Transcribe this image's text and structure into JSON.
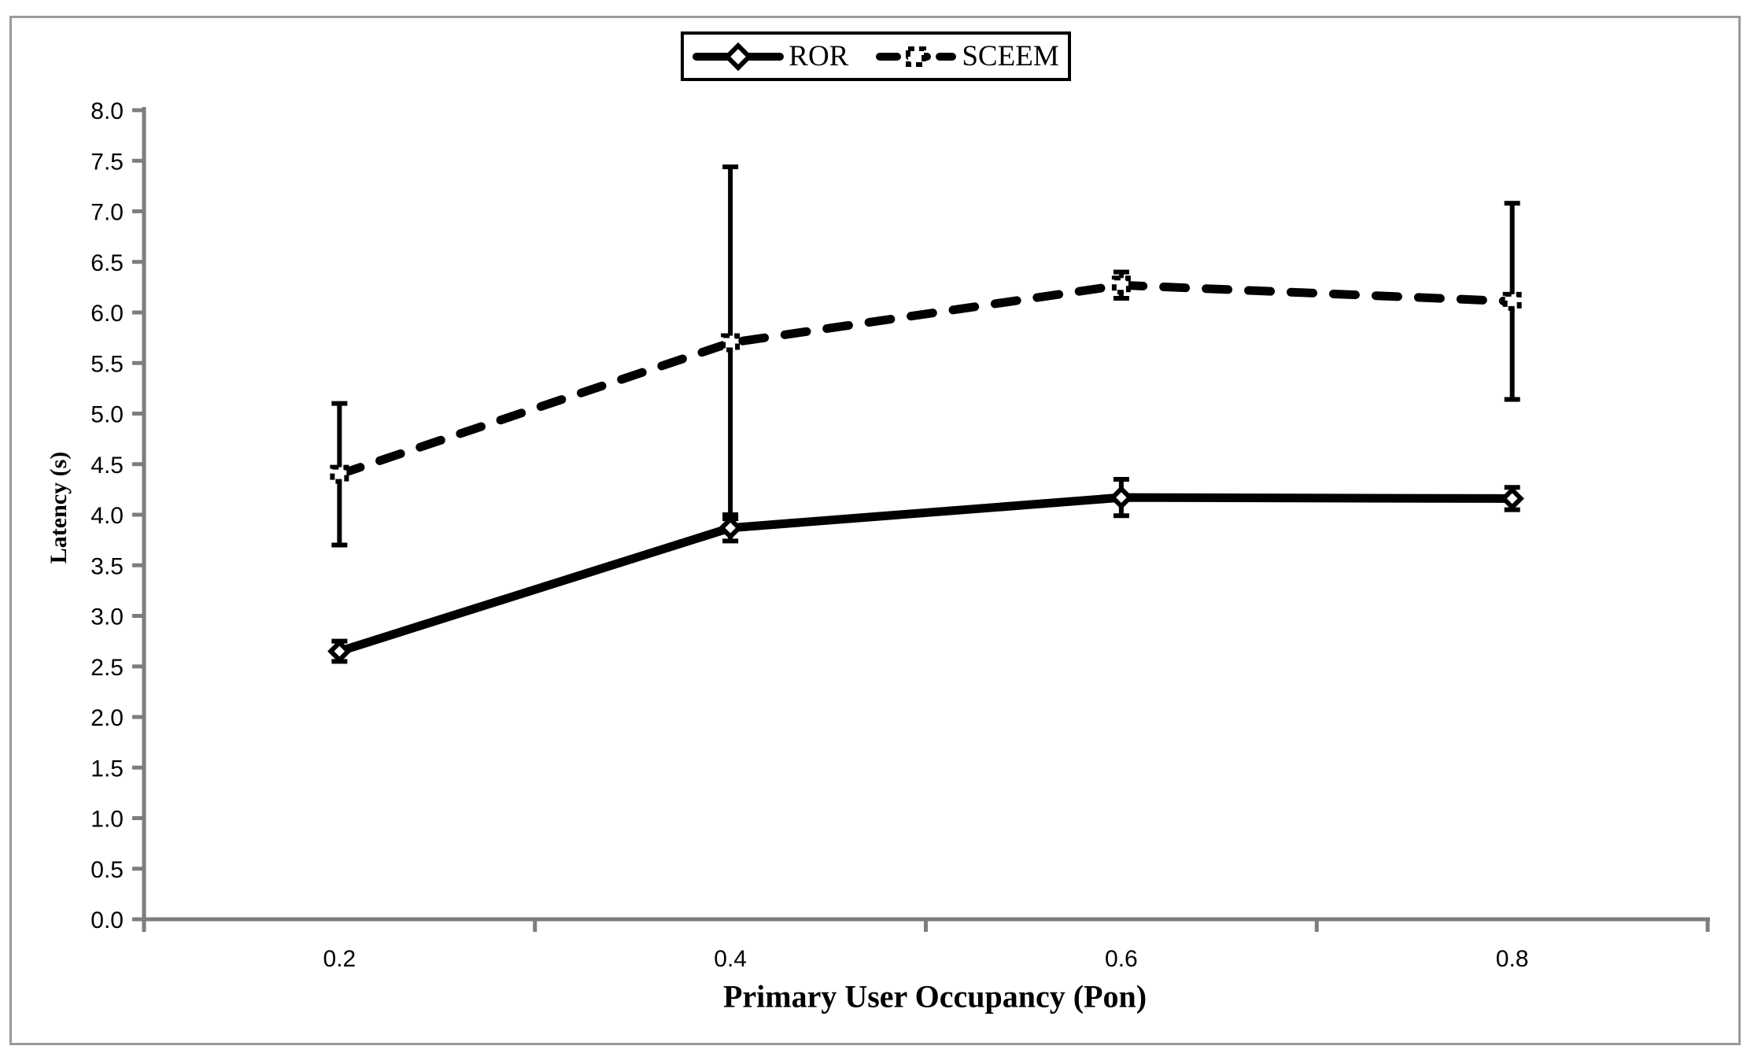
{
  "figure": {
    "background_color": "#ffffff",
    "border_color": "#9a9a9a"
  },
  "legend": {
    "position": "top-center"
  },
  "chart_data": {
    "type": "line",
    "title": "",
    "xlabel": "Primary User Occupancy (Pon)",
    "ylabel": "Latency (s)",
    "categories": [
      "0.2",
      "0.4",
      "0.6",
      "0.8"
    ],
    "x_values": [
      0.2,
      0.4,
      0.6,
      0.8
    ],
    "ylim": [
      0.0,
      8.0
    ],
    "y_tick_step": 0.5,
    "y_tick_labels": [
      "0.0",
      "0.5",
      "1.0",
      "1.5",
      "2.0",
      "2.5",
      "3.0",
      "3.5",
      "4.0",
      "4.5",
      "5.0",
      "5.5",
      "6.0",
      "6.5",
      "7.0",
      "7.5",
      "8.0"
    ],
    "grid": false,
    "legend_position": "top-center",
    "axis_color": "#7d7d7d",
    "series_color": "#000000",
    "series": [
      {
        "name": "ROR",
        "line_style": "solid",
        "marker": "diamond",
        "color": "#000000",
        "values": [
          2.65,
          3.87,
          4.17,
          4.16
        ],
        "error_bars": [
          0.1,
          0.13,
          0.18,
          0.11
        ]
      },
      {
        "name": "SCEEM",
        "line_style": "dashed",
        "marker": "square",
        "color": "#000000",
        "values": [
          4.4,
          5.7,
          6.27,
          6.11
        ],
        "error_bars": [
          0.7,
          1.74,
          0.13,
          0.97
        ]
      }
    ]
  }
}
